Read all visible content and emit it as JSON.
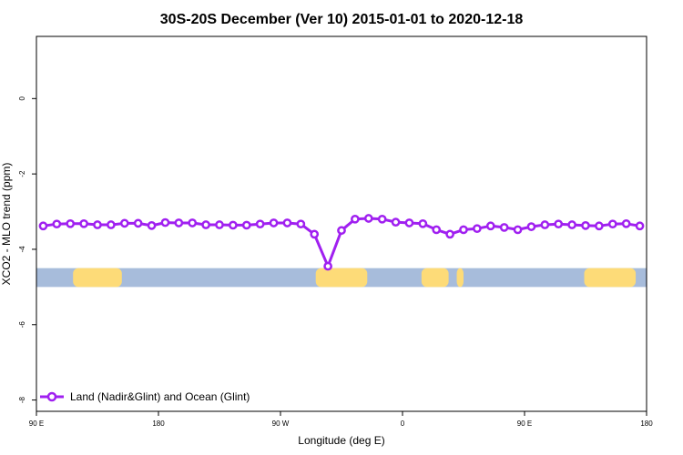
{
  "chart_data": {
    "type": "line",
    "title": "30S-20S December (Ver 10)   2015-01-01 to 2020-12-18",
    "xlabel": "Longitude (deg E)",
    "ylabel": "XCO2 - MLO trend (ppm)",
    "xlim": [
      90,
      540
    ],
    "ylim": [
      -8.3,
      1.65
    ],
    "grid": false,
    "legend_position": "bottom-left",
    "x_ticks": [
      {
        "value": 90,
        "label": "90 E"
      },
      {
        "value": 180,
        "label": "180"
      },
      {
        "value": 270,
        "label": "90 W"
      },
      {
        "value": 360,
        "label": "0"
      },
      {
        "value": 450,
        "label": "90 E"
      },
      {
        "value": 540,
        "label": "180"
      }
    ],
    "y_ticks": [
      {
        "value": 0,
        "label": "0"
      },
      {
        "value": -2,
        "label": "-2"
      },
      {
        "value": -4,
        "label": "-4"
      },
      {
        "value": -6,
        "label": "-6"
      },
      {
        "value": -8,
        "label": "-8"
      }
    ],
    "series": [
      {
        "name": "Land (Nadir&Glint) and Ocean (Glint)",
        "color": "#a020f0",
        "x": [
          95,
          105,
          115,
          125,
          135,
          145,
          155,
          165,
          175,
          185,
          195,
          205,
          215,
          225,
          235,
          245,
          255,
          265,
          275,
          285,
          295,
          305,
          315,
          325,
          335,
          345,
          355,
          365,
          375,
          385,
          395,
          405,
          415,
          425,
          435,
          445,
          455,
          465,
          475,
          485,
          495,
          505,
          515,
          525,
          535
        ],
        "y": [
          -3.38,
          -3.33,
          -3.32,
          -3.32,
          -3.35,
          -3.35,
          -3.31,
          -3.31,
          -3.37,
          -3.29,
          -3.3,
          -3.3,
          -3.35,
          -3.35,
          -3.36,
          -3.36,
          -3.33,
          -3.3,
          -3.3,
          -3.33,
          -3.6,
          -4.45,
          -3.5,
          -3.2,
          -3.18,
          -3.2,
          -3.28,
          -3.3,
          -3.32,
          -3.48,
          -3.6,
          -3.48,
          -3.45,
          -3.38,
          -3.42,
          -3.48,
          -3.4,
          -3.35,
          -3.33,
          -3.35,
          -3.37,
          -3.38,
          -3.33,
          -3.32,
          -3.38
        ]
      }
    ],
    "background_band": {
      "y_range": [
        -5.0,
        -4.5
      ],
      "ocean_color": "#a7bcdb",
      "land_color": "#fddb78",
      "land_segments": [
        [
          117,
          153
        ],
        [
          296,
          334
        ],
        [
          374,
          394
        ],
        [
          400,
          405
        ],
        [
          494,
          532
        ]
      ]
    }
  }
}
